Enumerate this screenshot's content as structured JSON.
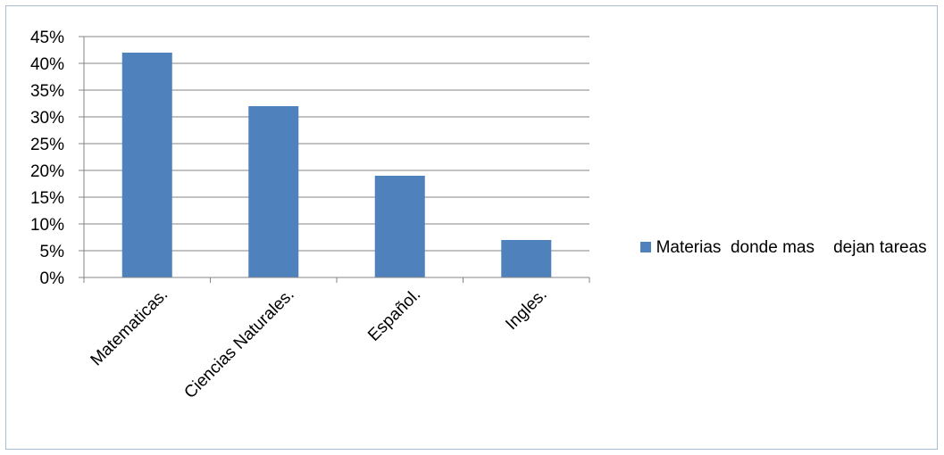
{
  "chart_data": {
    "type": "bar",
    "categories": [
      "Matematicas.",
      "Ciencias Naturales.",
      "Español.",
      "Ingles."
    ],
    "series": [
      {
        "name": "Materias  donde mas    dejan tareas",
        "values": [
          42,
          32,
          19,
          7
        ],
        "color": "#4f81bd"
      }
    ],
    "yticks": [
      "0%",
      "5%",
      "10%",
      "15%",
      "20%",
      "25%",
      "30%",
      "35%",
      "40%",
      "45%"
    ],
    "ylim": [
      0,
      45
    ],
    "grid": true,
    "legend_position": "right"
  }
}
